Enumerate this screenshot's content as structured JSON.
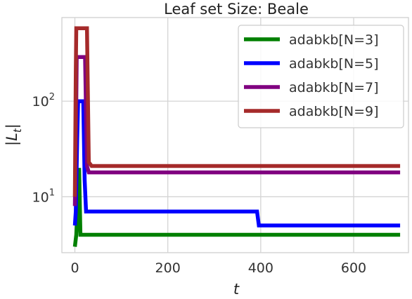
{
  "chart_data": {
    "type": "line",
    "title": "Leaf set Size: Beale",
    "xlabel": "t",
    "ylabel": "|L_t|",
    "yscale": "log",
    "xlim": [
      -28,
      718
    ],
    "ylim": [
      2.6,
      750
    ],
    "xticks": [
      0,
      200,
      400,
      600
    ],
    "yticks": [
      {
        "value": 10,
        "base": "10",
        "exp": "1"
      },
      {
        "value": 100,
        "base": "10",
        "exp": "2"
      }
    ],
    "grid": true,
    "legend_position": "top-right",
    "series": [
      {
        "name": "adabkb[N=3]",
        "color": "#008000",
        "points": [
          [
            0,
            3
          ],
          [
            3,
            4
          ],
          [
            6,
            8
          ],
          [
            8,
            16
          ],
          [
            9,
            20
          ],
          [
            12,
            4
          ],
          [
            700,
            4
          ]
        ]
      },
      {
        "name": "adabkb[N=5]",
        "color": "#0000ff",
        "points": [
          [
            0,
            5
          ],
          [
            2,
            7
          ],
          [
            5,
            40
          ],
          [
            7,
            100
          ],
          [
            18,
            100
          ],
          [
            21,
            15
          ],
          [
            24,
            7
          ],
          [
            392,
            7
          ],
          [
            396,
            5
          ],
          [
            700,
            5
          ]
        ]
      },
      {
        "name": "adabkb[N=7]",
        "color": "#800080",
        "points": [
          [
            0,
            8
          ],
          [
            3,
            100
          ],
          [
            4,
            290
          ],
          [
            22,
            290
          ],
          [
            26,
            21
          ],
          [
            30,
            18
          ],
          [
            700,
            18
          ]
        ]
      },
      {
        "name": "adabkb[N=9]",
        "color": "#a52a2a",
        "points": [
          [
            0,
            10
          ],
          [
            2,
            200
          ],
          [
            3,
            580
          ],
          [
            26,
            580
          ],
          [
            30,
            23
          ],
          [
            36,
            21
          ],
          [
            700,
            21
          ]
        ]
      }
    ]
  }
}
